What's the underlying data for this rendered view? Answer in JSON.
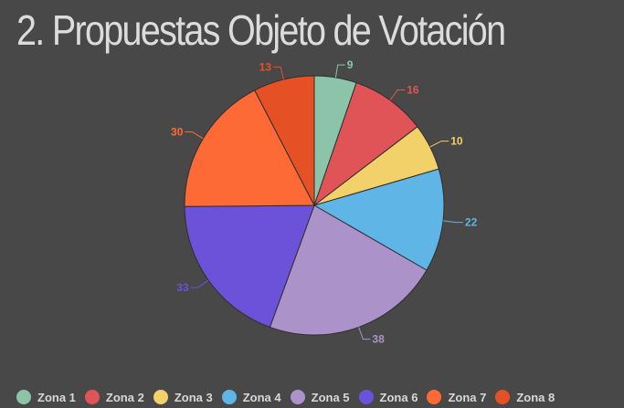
{
  "title": "2. Propuestas Objeto de Votación",
  "chart_data": {
    "type": "pie",
    "title": "2. Propuestas Objeto de Votación",
    "legend": "bottom",
    "categories": [
      "Zona 1",
      "Zona 2",
      "Zona 3",
      "Zona 4",
      "Zona 5",
      "Zona 6",
      "Zona 7",
      "Zona 8"
    ],
    "values": [
      9,
      16,
      10,
      22,
      38,
      33,
      30,
      13
    ],
    "colors": [
      "#8cc4aa",
      "#e05458",
      "#f2d06a",
      "#5fb5e6",
      "#ab93c9",
      "#6c52d9",
      "#fe6a35",
      "#e55124"
    ]
  }
}
